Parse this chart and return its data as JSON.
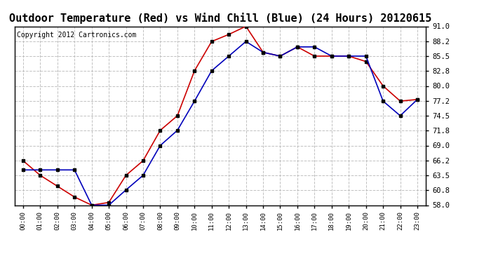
{
  "title": "Outdoor Temperature (Red) vs Wind Chill (Blue) (24 Hours) 20120615",
  "copyright": "Copyright 2012 Cartronics.com",
  "hours": [
    0,
    1,
    2,
    3,
    4,
    5,
    6,
    7,
    8,
    9,
    10,
    11,
    12,
    13,
    14,
    15,
    16,
    17,
    18,
    19,
    20,
    21,
    22,
    23
  ],
  "temp_red": [
    66.2,
    63.5,
    61.5,
    59.5,
    58.0,
    58.5,
    63.5,
    66.2,
    71.8,
    74.5,
    82.8,
    88.2,
    89.5,
    91.0,
    86.2,
    85.5,
    87.2,
    85.5,
    85.5,
    85.5,
    84.5,
    80.0,
    77.2,
    77.5
  ],
  "wind_blue": [
    64.5,
    64.5,
    64.5,
    64.5,
    58.0,
    58.0,
    60.8,
    63.5,
    69.0,
    71.8,
    77.2,
    82.8,
    85.5,
    88.2,
    86.2,
    85.5,
    87.2,
    87.2,
    85.5,
    85.5,
    85.5,
    77.2,
    74.5,
    77.5
  ],
  "ylim": [
    58.0,
    91.0
  ],
  "yticks": [
    58.0,
    60.8,
    63.5,
    66.2,
    69.0,
    71.8,
    74.5,
    77.2,
    80.0,
    82.8,
    85.5,
    88.2,
    91.0
  ],
  "bg_color": "#ffffff",
  "grid_color": "#bbbbbb",
  "red_color": "#cc0000",
  "blue_color": "#0000bb",
  "marker_color": "#000000",
  "title_fontsize": 11,
  "copyright_fontsize": 7
}
